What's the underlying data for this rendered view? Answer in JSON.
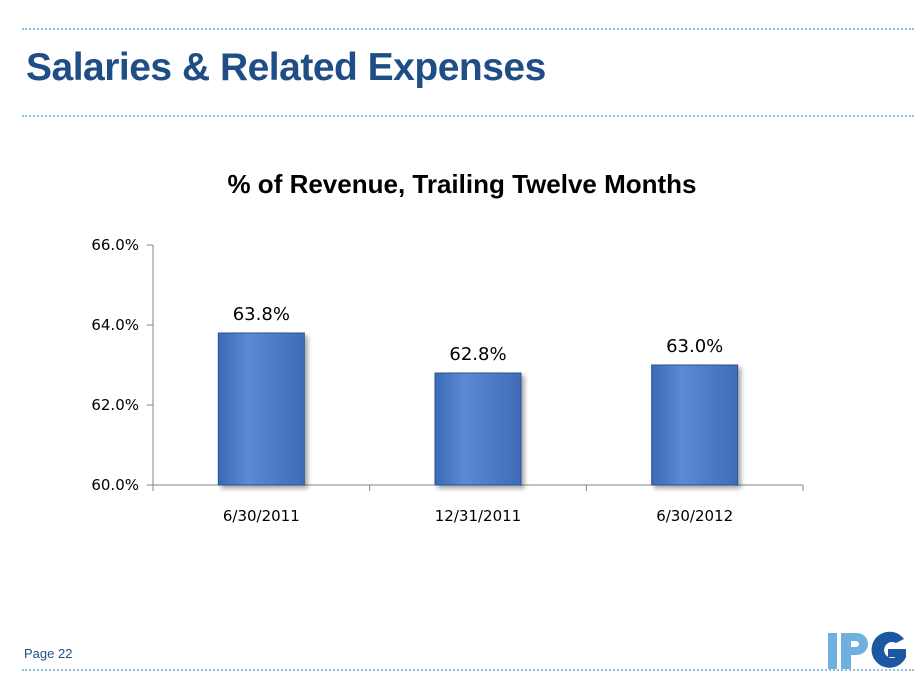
{
  "slide": {
    "title": "Salaries & Related Expenses",
    "page_label": "Page 22",
    "logo_text": "IPG"
  },
  "colors": {
    "title": "#1f4e86",
    "bar": "#4a79c8",
    "bar_edge": "#2c548f",
    "dotted_rule": "#8fc1df",
    "logo_light": "#6eb1e0",
    "logo_dark": "#1c58a2"
  },
  "chart_data": {
    "type": "bar",
    "title": "% of Revenue, Trailing Twelve Months",
    "xlabel": "",
    "ylabel": "",
    "categories": [
      "6/30/2011",
      "12/31/2011",
      "6/30/2012"
    ],
    "values": [
      63.8,
      62.8,
      63.0
    ],
    "value_labels": [
      "63.8%",
      "62.8%",
      "63.0%"
    ],
    "ylim": [
      60.0,
      66.0
    ],
    "y_ticks": [
      60.0,
      62.0,
      64.0,
      66.0
    ],
    "y_tick_labels": [
      "60.0%",
      "62.0%",
      "64.0%",
      "66.0%"
    ],
    "grid": false,
    "legend": "none"
  }
}
